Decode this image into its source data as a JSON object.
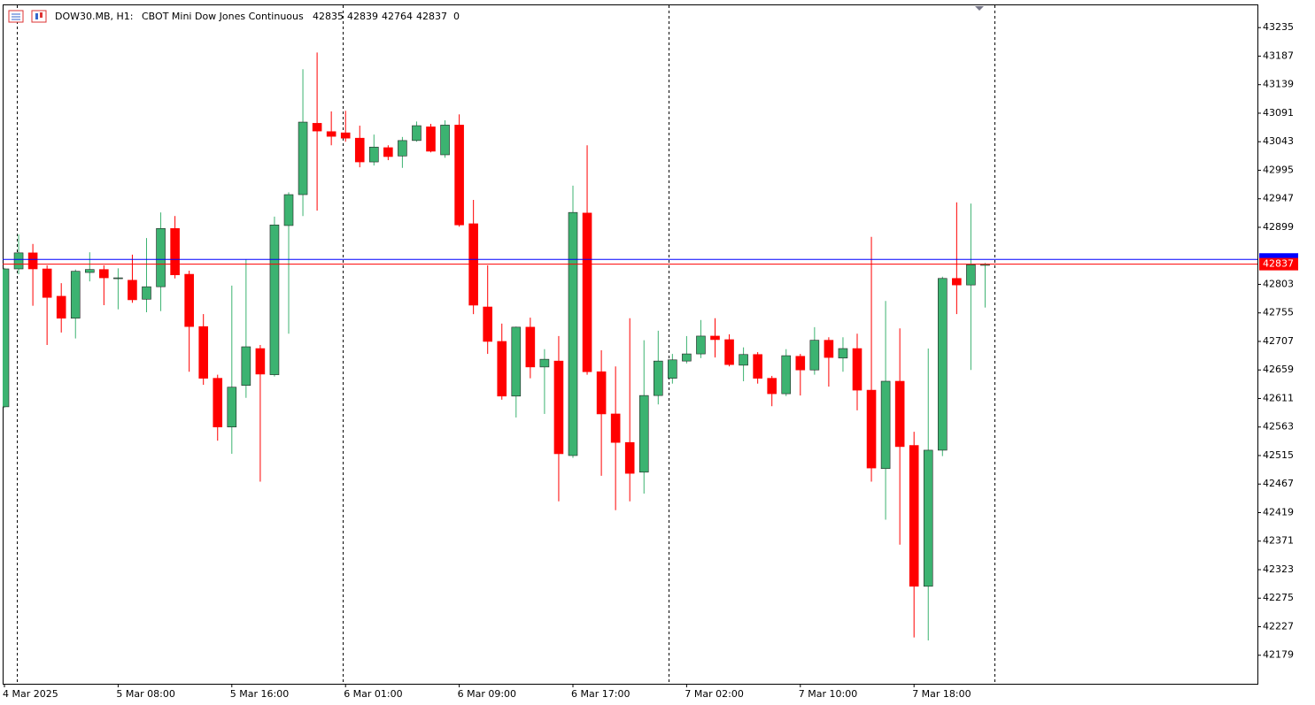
{
  "header": {
    "symbol": "DOW30.MB, H1:",
    "description": "CBOT Mini Dow Jones Continuous",
    "ohlc": [
      42835,
      42839,
      42764,
      42837
    ],
    "volume": 0
  },
  "chart_data": {
    "type": "candlestick",
    "categories": [
      "4 Mar 2025",
      null,
      null,
      null,
      null,
      null,
      null,
      null,
      "5 Mar 08:00",
      null,
      null,
      null,
      null,
      null,
      null,
      null,
      "5 Mar 16:00",
      null,
      null,
      null,
      null,
      null,
      null,
      null,
      "6 Mar 01:00",
      null,
      null,
      null,
      null,
      null,
      null,
      null,
      "6 Mar 09:00",
      null,
      null,
      null,
      null,
      null,
      null,
      null,
      "6 Mar 17:00",
      null,
      null,
      null,
      null,
      null,
      null,
      null,
      "7 Mar 02:00",
      null,
      null,
      null,
      null,
      null,
      null,
      null,
      "7 Mar 10:00",
      null,
      null,
      null,
      null,
      null,
      null,
      null,
      "7 Mar 18:00",
      null,
      null,
      null,
      null,
      null
    ],
    "open": [
      42597,
      42829,
      42856,
      42829,
      42783,
      42746,
      42823,
      42828,
      42813,
      42810,
      42778,
      42799,
      42897,
      42820,
      42732,
      42645,
      42563,
      42633,
      42695,
      42651,
      42902,
      42954,
      43074,
      43060,
      43058,
      43049,
      43009,
      43033,
      43019,
      43045,
      43068,
      43021,
      43071,
      42905,
      42765,
      42707,
      42615,
      42731,
      42664,
      42674,
      42515,
      42923,
      42656,
      42585,
      42537,
      42487,
      42616,
      42645,
      42674,
      42686,
      42716,
      42710,
      42667,
      42685,
      42645,
      42619,
      42682,
      42659,
      42709,
      42679,
      42695,
      42625,
      42493,
      42640,
      42532,
      42295,
      42524,
      42813,
      42802,
      42835
    ],
    "high": [
      42831,
      42887,
      42871,
      42835,
      42805,
      42828,
      42857,
      42835,
      42830,
      42853,
      42881,
      42924,
      42918,
      42826,
      42753,
      42651,
      42801,
      42845,
      42701,
      42917,
      42958,
      43165,
      43193,
      43094,
      43095,
      43070,
      43055,
      43037,
      43051,
      43077,
      43073,
      43079,
      43089,
      42945,
      42835,
      42737,
      42732,
      42747,
      42694,
      42716,
      42969,
      43037,
      42692,
      42665,
      42746,
      42709,
      42725,
      42686,
      42716,
      42743,
      42746,
      42719,
      42697,
      42689,
      42649,
      42694,
      42686,
      42731,
      42714,
      42714,
      42720,
      42883,
      42775,
      42729,
      42555,
      42695,
      42816,
      42941,
      42939,
      42839
    ],
    "low": [
      42595,
      42820,
      42767,
      42701,
      42722,
      42712,
      42808,
      42768,
      42761,
      42772,
      42756,
      42758,
      42813,
      42656,
      42634,
      42540,
      42518,
      42612,
      42471,
      42648,
      42720,
      42918,
      42927,
      43037,
      43043,
      43000,
      43003,
      43012,
      42999,
      43043,
      43025,
      43016,
      42900,
      42753,
      42686,
      42609,
      42579,
      42645,
      42585,
      42438,
      42511,
      42651,
      42481,
      42423,
      42438,
      42451,
      42601,
      42636,
      42670,
      42679,
      42680,
      42665,
      42640,
      42636,
      42598,
      42615,
      42616,
      42651,
      42631,
      42656,
      42591,
      42471,
      42407,
      42365,
      42209,
      42204,
      42514,
      42753,
      42659,
      42764
    ],
    "close": [
      42829,
      42856,
      42829,
      42781,
      42746,
      42825,
      42828,
      42814,
      42814,
      42777,
      42799,
      42897,
      42819,
      42732,
      42645,
      42563,
      42630,
      42698,
      42652,
      42903,
      42954,
      43076,
      43061,
      43052,
      43049,
      43009,
      43034,
      43018,
      43045,
      43070,
      43027,
      43071,
      42903,
      42768,
      42707,
      42615,
      42731,
      42664,
      42677,
      42518,
      42924,
      42656,
      42585,
      42537,
      42485,
      42616,
      42674,
      42676,
      42686,
      42716,
      42710,
      42668,
      42685,
      42645,
      42619,
      42683,
      42659,
      42709,
      42680,
      42695,
      42625,
      42494,
      42640,
      42530,
      42295,
      42524,
      42813,
      42802,
      42836,
      42837
    ],
    "up_color": "#3cb371",
    "down_color": "#ff0000",
    "ylim": [
      42131,
      43274
    ],
    "yticks": [
      42179,
      42227,
      42275,
      42323,
      42371,
      42419,
      42467,
      42515,
      42563,
      42611,
      42659,
      42707,
      42755,
      42803,
      42899,
      42947,
      42995,
      43043,
      43091,
      43139,
      43187,
      43235
    ],
    "last_price": 42837,
    "last_price_color": "#ff0000",
    "ask_price": 42845,
    "ask_price_color": "#0000ff"
  }
}
